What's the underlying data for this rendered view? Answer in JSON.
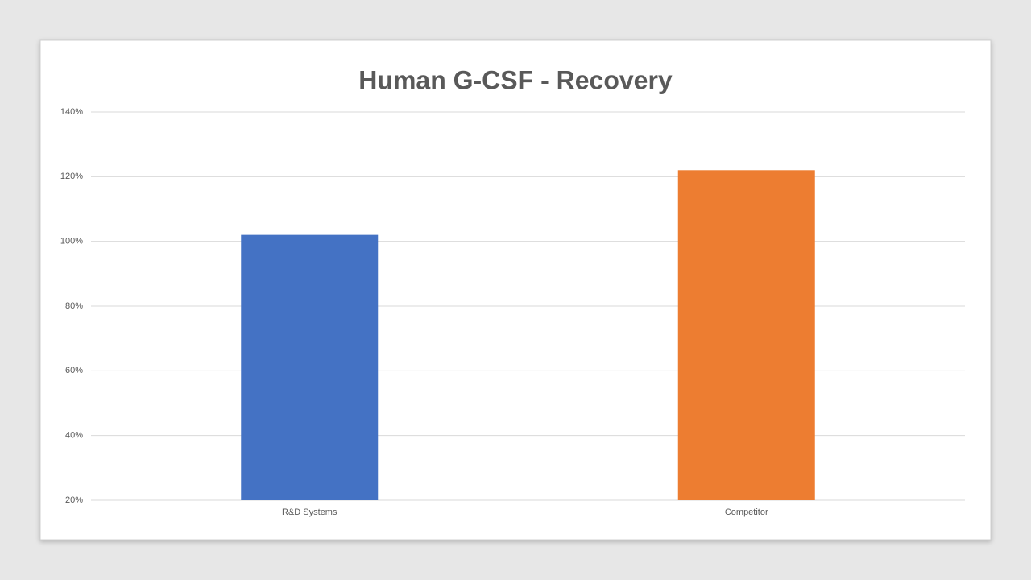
{
  "chart_data": {
    "type": "bar",
    "title": "Human G-CSF - Recovery",
    "categories": [
      "R&D Systems",
      "Competitor"
    ],
    "values": [
      102,
      122
    ],
    "colors": [
      "#4472c4",
      "#ed7d31"
    ],
    "ylim": [
      20,
      140
    ],
    "yticks": [
      {
        "value": 20,
        "label": "20%"
      },
      {
        "value": 40,
        "label": "40%"
      },
      {
        "value": 60,
        "label": "60%"
      },
      {
        "value": 80,
        "label": "80%"
      },
      {
        "value": 100,
        "label": "100%"
      },
      {
        "value": 120,
        "label": "120%"
      },
      {
        "value": 140,
        "label": "140%"
      }
    ],
    "grid": true
  }
}
